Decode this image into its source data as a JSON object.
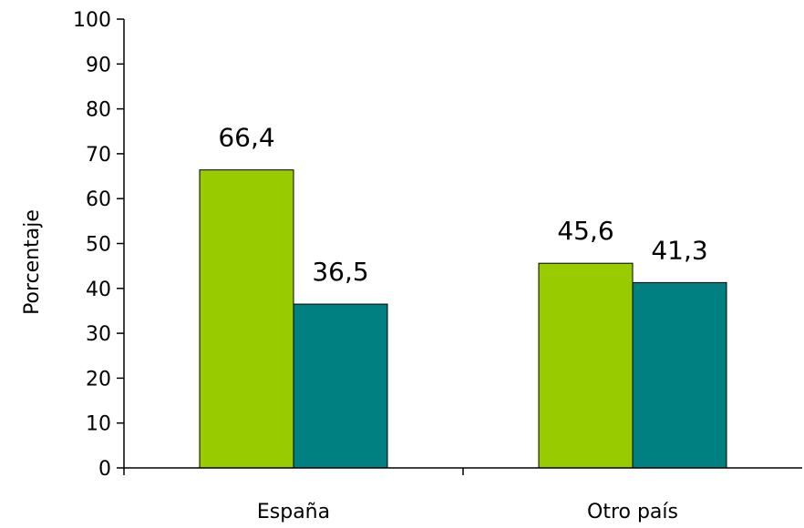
{
  "chart_data": {
    "type": "bar",
    "title": "",
    "xlabel": "",
    "ylabel": "Porcentaje",
    "ylim": [
      0,
      100
    ],
    "yticks": [
      0,
      10,
      20,
      30,
      40,
      50,
      60,
      70,
      80,
      90,
      100
    ],
    "categories": [
      "España",
      "Otro país"
    ],
    "series": [
      {
        "values": [
          66.4,
          45.6
        ],
        "color": "#99cc00",
        "labels": [
          "66,4",
          "45,6"
        ]
      },
      {
        "values": [
          36.5,
          41.3
        ],
        "color": "#008080",
        "labels": [
          "36,5",
          "41,3"
        ]
      }
    ],
    "grid": false,
    "legend": "none"
  }
}
